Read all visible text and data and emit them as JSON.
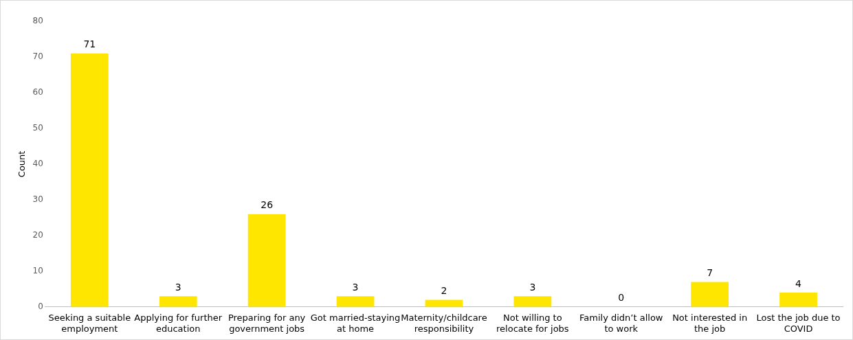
{
  "chart_data": {
    "type": "bar",
    "ylabel": "Count",
    "categories": [
      "Seeking a suitable employment",
      "Applying for further education",
      "Preparing for any government jobs",
      "Got married-staying at home",
      "Maternity/childcare responsibility",
      "Not willing to relocate for jobs",
      "Family didn’t allow to work",
      "Not interested in the job",
      "Lost the job due to COVID"
    ],
    "values": [
      71,
      3,
      26,
      3,
      2,
      3,
      0,
      7,
      4
    ],
    "color": "#ffe600",
    "ylim": [
      0,
      80
    ],
    "yticks": [
      0,
      10,
      20,
      30,
      40,
      50,
      60,
      70,
      80
    ],
    "grid": false,
    "legend": false,
    "data_labels": true
  }
}
